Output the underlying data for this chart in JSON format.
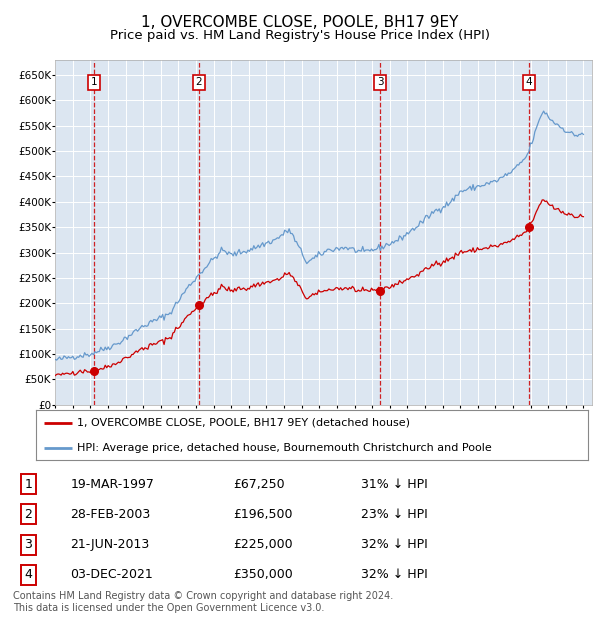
{
  "title": "1, OVERCOMBE CLOSE, POOLE, BH17 9EY",
  "subtitle": "Price paid vs. HM Land Registry's House Price Index (HPI)",
  "background_color": "#dce6f1",
  "plot_bg_color": "#dce6f1",
  "grid_color": "#ffffff",
  "ylim": [
    0,
    680000
  ],
  "yticks": [
    0,
    50000,
    100000,
    150000,
    200000,
    250000,
    300000,
    350000,
    400000,
    450000,
    500000,
    550000,
    600000,
    650000
  ],
  "sale_t_vals": [
    1997.21,
    2003.16,
    2013.47,
    2021.92
  ],
  "sale_prices": [
    67250,
    196500,
    225000,
    350000
  ],
  "sale_labels": [
    "1",
    "2",
    "3",
    "4"
  ],
  "legend_red": "1, OVERCOMBE CLOSE, POOLE, BH17 9EY (detached house)",
  "legend_blue": "HPI: Average price, detached house, Bournemouth Christchurch and Poole",
  "table_rows": [
    [
      "1",
      "19-MAR-1997",
      "£67,250",
      "31% ↓ HPI"
    ],
    [
      "2",
      "28-FEB-2003",
      "£196,500",
      "23% ↓ HPI"
    ],
    [
      "3",
      "21-JUN-2013",
      "£225,000",
      "32% ↓ HPI"
    ],
    [
      "4",
      "03-DEC-2021",
      "£350,000",
      "32% ↓ HPI"
    ]
  ],
  "footnote": "Contains HM Land Registry data © Crown copyright and database right 2024.\nThis data is licensed under the Open Government Licence v3.0.",
  "red_color": "#cc0000",
  "blue_color": "#6699cc",
  "dashed_color": "#cc0000",
  "title_fontsize": 11,
  "subtitle_fontsize": 9.5,
  "tick_fontsize": 7.5,
  "legend_fontsize": 8,
  "table_fontsize": 9,
  "footnote_fontsize": 7,
  "hpi_keypoints": [
    [
      1995.0,
      88000
    ],
    [
      1996.0,
      95000
    ],
    [
      1997.0,
      100000
    ],
    [
      1998.5,
      120000
    ],
    [
      2000.0,
      155000
    ],
    [
      2001.5,
      180000
    ],
    [
      2002.5,
      230000
    ],
    [
      2003.5,
      270000
    ],
    [
      2004.5,
      305000
    ],
    [
      2005.0,
      295000
    ],
    [
      2006.0,
      305000
    ],
    [
      2007.5,
      325000
    ],
    [
      2008.3,
      345000
    ],
    [
      2009.3,
      280000
    ],
    [
      2010.5,
      305000
    ],
    [
      2011.5,
      310000
    ],
    [
      2012.5,
      300000
    ],
    [
      2013.5,
      310000
    ],
    [
      2014.5,
      325000
    ],
    [
      2015.5,
      350000
    ],
    [
      2016.5,
      380000
    ],
    [
      2017.5,
      400000
    ],
    [
      2018.0,
      420000
    ],
    [
      2019.0,
      430000
    ],
    [
      2020.0,
      440000
    ],
    [
      2021.0,
      460000
    ],
    [
      2021.8,
      490000
    ],
    [
      2022.3,
      540000
    ],
    [
      2022.7,
      580000
    ],
    [
      2023.2,
      560000
    ],
    [
      2023.8,
      545000
    ],
    [
      2024.5,
      530000
    ],
    [
      2025.0,
      535000
    ]
  ]
}
